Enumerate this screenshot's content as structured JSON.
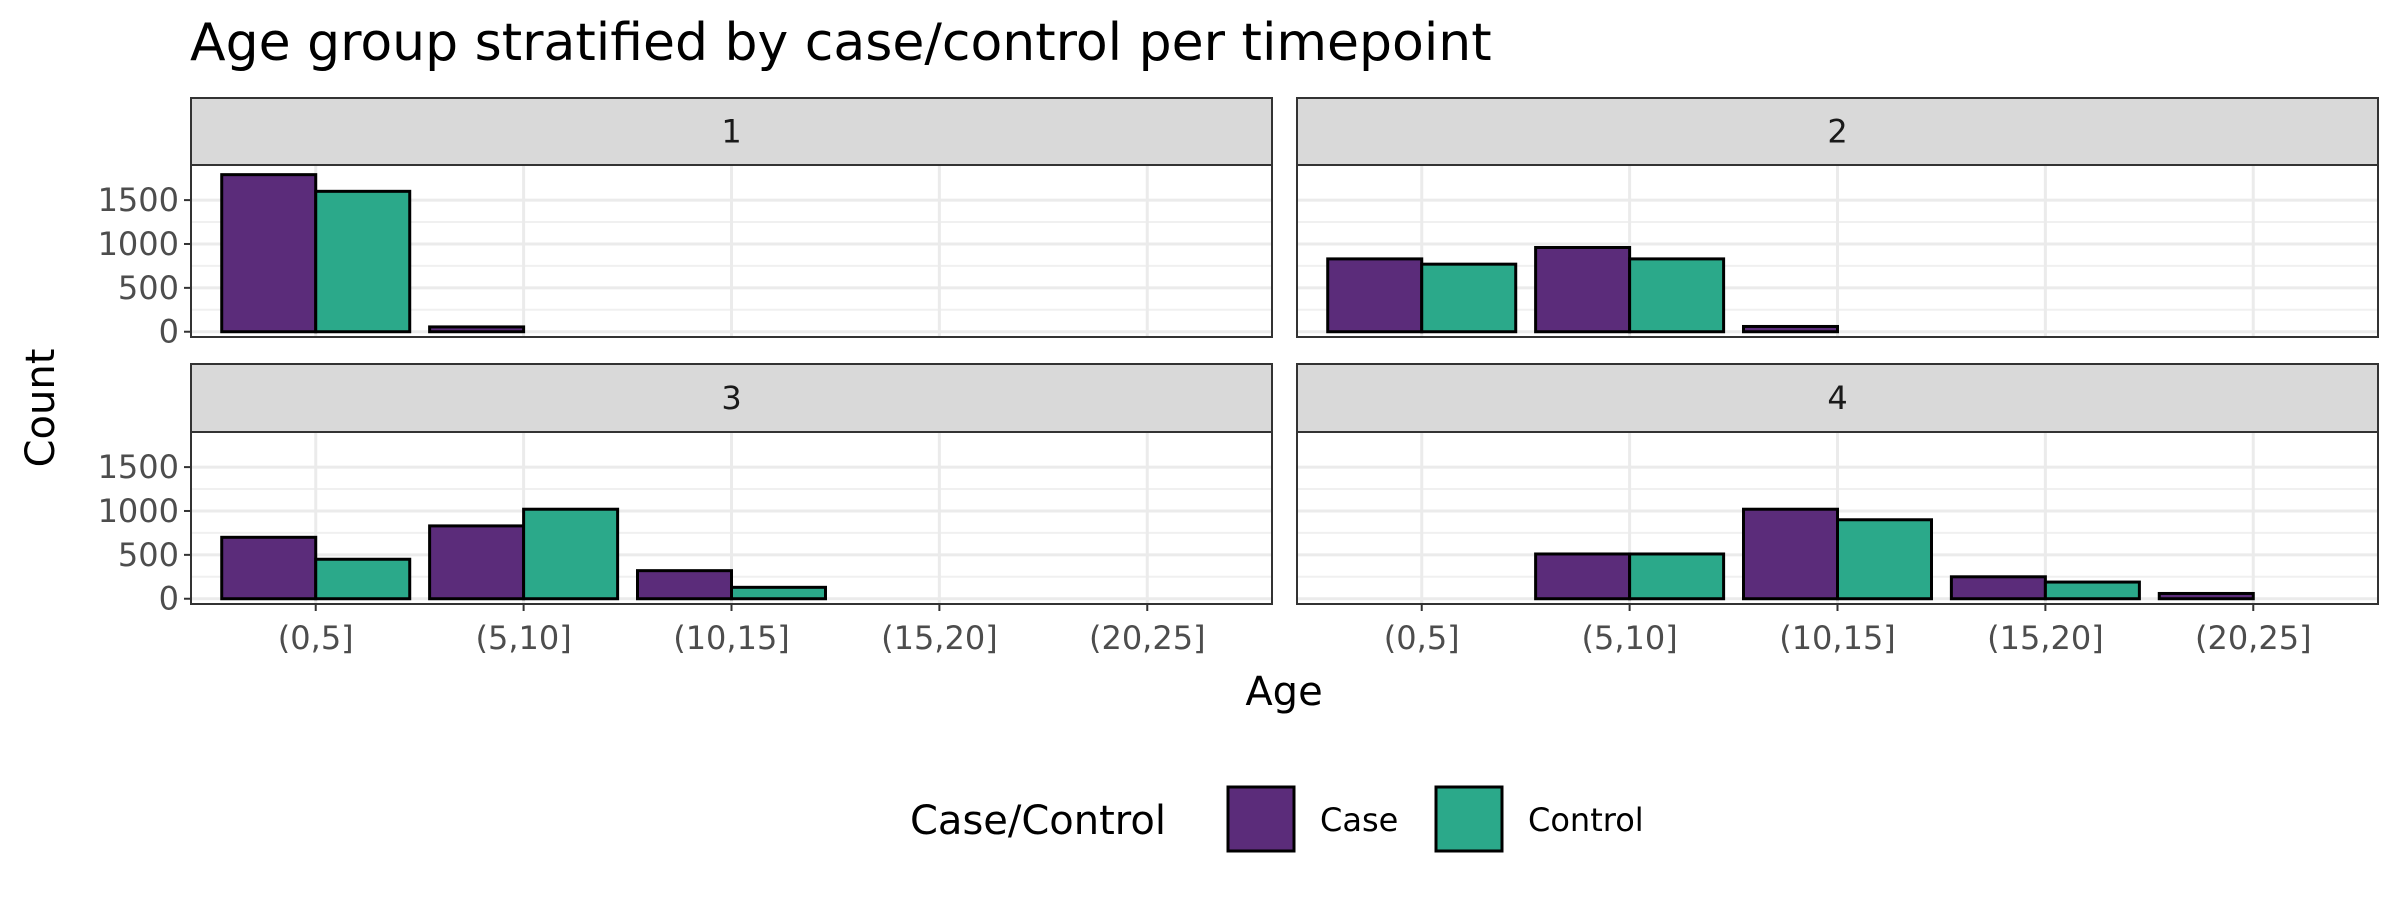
{
  "chart_data": {
    "type": "bar",
    "title": "Age group stratified by case/control per timepoint",
    "xlabel": "Age",
    "ylabel": "Count",
    "categories": [
      "(0,5]",
      "(5,10]",
      "(10,15]",
      "(15,20]",
      "(20,25]"
    ],
    "yticks": [
      0,
      500,
      1000,
      1500
    ],
    "ylim": [
      -60,
      1900
    ],
    "grid": true,
    "legend": {
      "title": "Case/Control",
      "position": "bottom",
      "entries": [
        "Case",
        "Control"
      ]
    },
    "colors": {
      "Case": "#5b2c7a",
      "Control": "#2ba98a"
    },
    "panels": [
      {
        "label": "1",
        "series": [
          {
            "name": "Case",
            "values": [
              1790,
              55,
              null,
              null,
              null
            ]
          },
          {
            "name": "Control",
            "values": [
              1600,
              null,
              null,
              null,
              null
            ]
          }
        ]
      },
      {
        "label": "2",
        "series": [
          {
            "name": "Case",
            "values": [
              830,
              960,
              60,
              null,
              null
            ]
          },
          {
            "name": "Control",
            "values": [
              770,
              830,
              null,
              null,
              null
            ]
          }
        ]
      },
      {
        "label": "3",
        "series": [
          {
            "name": "Case",
            "values": [
              700,
              830,
              320,
              null,
              null
            ]
          },
          {
            "name": "Control",
            "values": [
              450,
              1020,
              130,
              null,
              null
            ]
          }
        ]
      },
      {
        "label": "4",
        "series": [
          {
            "name": "Case",
            "values": [
              null,
              510,
              1020,
              250,
              60
            ]
          },
          {
            "name": "Control",
            "values": [
              null,
              510,
              900,
              190,
              null
            ]
          }
        ]
      }
    ]
  }
}
